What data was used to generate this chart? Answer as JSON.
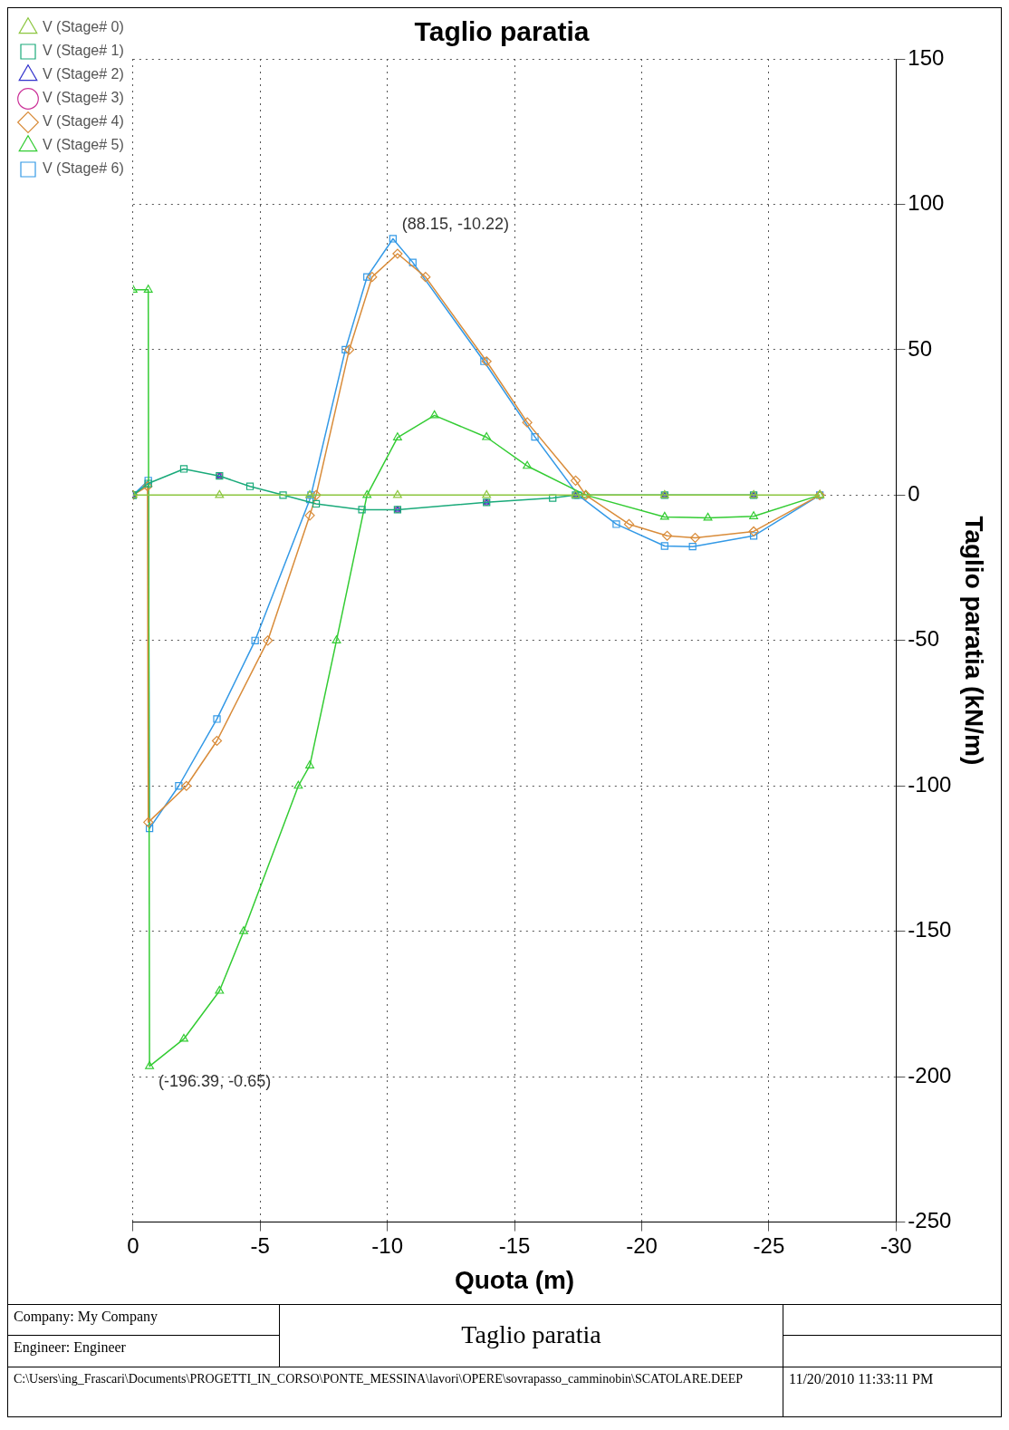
{
  "chart_data": {
    "type": "line",
    "title": "Taglio paratia",
    "xlabel": "Quota (m)",
    "ylabel": "Taglio paratia (kN/m)",
    "xlim": [
      0,
      -30
    ],
    "xticks": [
      0,
      -5,
      -10,
      -15,
      -20,
      -25,
      -30
    ],
    "ylim": [
      -250,
      150
    ],
    "yticks": [
      -250,
      -200,
      -150,
      -100,
      -50,
      0,
      50,
      100,
      150
    ],
    "grid": true,
    "legend": "left",
    "line_style": "solid",
    "series": [
      {
        "name": "V (Stage# 0)",
        "color": "#8cc63f",
        "marker": "triangle",
        "x": [
          0,
          -3.4,
          -6.95,
          -10.4,
          -13.9,
          -17.4,
          -20.9,
          -24.4,
          -27
        ],
        "values": [
          0,
          0,
          0,
          0,
          0,
          0,
          0,
          0,
          0
        ]
      },
      {
        "name": "V (Stage# 1)",
        "color": "#1aaa7a",
        "marker": "square",
        "x": [
          0,
          -0.6,
          -2,
          -3.4,
          -4.6,
          -5.9,
          -7.2,
          -9,
          -10.4,
          -13.9,
          -16.5,
          -17.4,
          -20.9,
          -24.4
        ],
        "values": [
          0,
          4,
          9,
          6.6,
          3,
          0,
          -3,
          -5,
          -5,
          -2.5,
          -1,
          0,
          0,
          0
        ]
      },
      {
        "name": "V (Stage# 2)",
        "type": "scatter",
        "color": "#3333cc",
        "marker": "triangle",
        "x": [
          0,
          -3.4,
          -10.4,
          -13.9,
          -17.4,
          -20.9,
          -24.4
        ],
        "values": [
          0,
          6.6,
          -5,
          -2.5,
          0,
          0,
          0
        ]
      },
      {
        "name": "V (Stage# 3)",
        "type": "scatter",
        "color": "#cc3399",
        "marker": "circle",
        "x": [
          0,
          -3.4,
          -10.4,
          -13.9,
          -17.4,
          -20.9,
          -24.4
        ],
        "values": [
          0,
          6.6,
          -5,
          -2.5,
          0,
          0,
          0
        ]
      },
      {
        "name": "V (Stage# 4)",
        "color": "#d98c3a",
        "marker": "diamond",
        "x": [
          0,
          -0.57,
          -0.6,
          -2.1,
          -3.3,
          -5.3,
          -6.95,
          -7.2,
          -8.5,
          -9.4,
          -10.4,
          -11.5,
          -13.9,
          -15.5,
          -17.4,
          -17.8,
          -19.5,
          -21,
          -22.1,
          -24.4,
          -27
        ],
        "values": [
          0,
          3,
          -112.5,
          -100,
          -84.5,
          -50,
          -7,
          0,
          50,
          75,
          83,
          75,
          46,
          25,
          5,
          0,
          -10,
          -14,
          -14.7,
          -12.5,
          0
        ]
      },
      {
        "name": "V (Stage# 5)",
        "color": "#33cc33",
        "marker": "triangle",
        "x": [
          0,
          -0.6,
          -0.65,
          -2,
          -3.4,
          -4.35,
          -6.5,
          -6.95,
          -8,
          -9.2,
          -10.4,
          -11.85,
          -13.9,
          -15.5,
          -17.8,
          -20.9,
          -22.6,
          -24.4,
          -27
        ],
        "values": [
          70.6,
          70.6,
          -196.39,
          -187,
          -170.5,
          -150,
          -100,
          -93,
          -50,
          0,
          19.8,
          27.4,
          19.9,
          10,
          0,
          -7.5,
          -7.8,
          -7.3,
          0
        ]
      },
      {
        "name": "V (Stage# 6)",
        "color": "#3399e6",
        "marker": "square",
        "x": [
          0,
          -0.6,
          -0.65,
          -1.8,
          -3.3,
          -4.8,
          -6.95,
          -7,
          -8.35,
          -9.2,
          -10.22,
          -11,
          -13.8,
          -15.8,
          -17.5,
          -19,
          -20.9,
          -22,
          -24.4,
          -27
        ],
        "values": [
          0,
          5,
          -114.6,
          -100,
          -77,
          -50,
          -1.5,
          0,
          50,
          75,
          88.15,
          80,
          46,
          20,
          0,
          -10,
          -17.5,
          -17.7,
          -14,
          0
        ]
      }
    ],
    "annotations": [
      {
        "text": "(88.15, -10.22)",
        "x": -10.22,
        "y": 88.15
      },
      {
        "text": "(-196.39, -0.65)",
        "x": -0.65,
        "y": -196.39
      },
      "Company: My Company",
      "Engineer: Engineer",
      "Taglio paratia",
      "C:\\Users\\ing_Frascari\\Documents\\PROGETTI_IN_CORSO\\PONTE_MESSINA\\lavori\\OPERE\\sovrapasso_camminobin\\SCATOLARE.DEEP",
      "11/20/2010 11:33:11 PM"
    ]
  }
}
